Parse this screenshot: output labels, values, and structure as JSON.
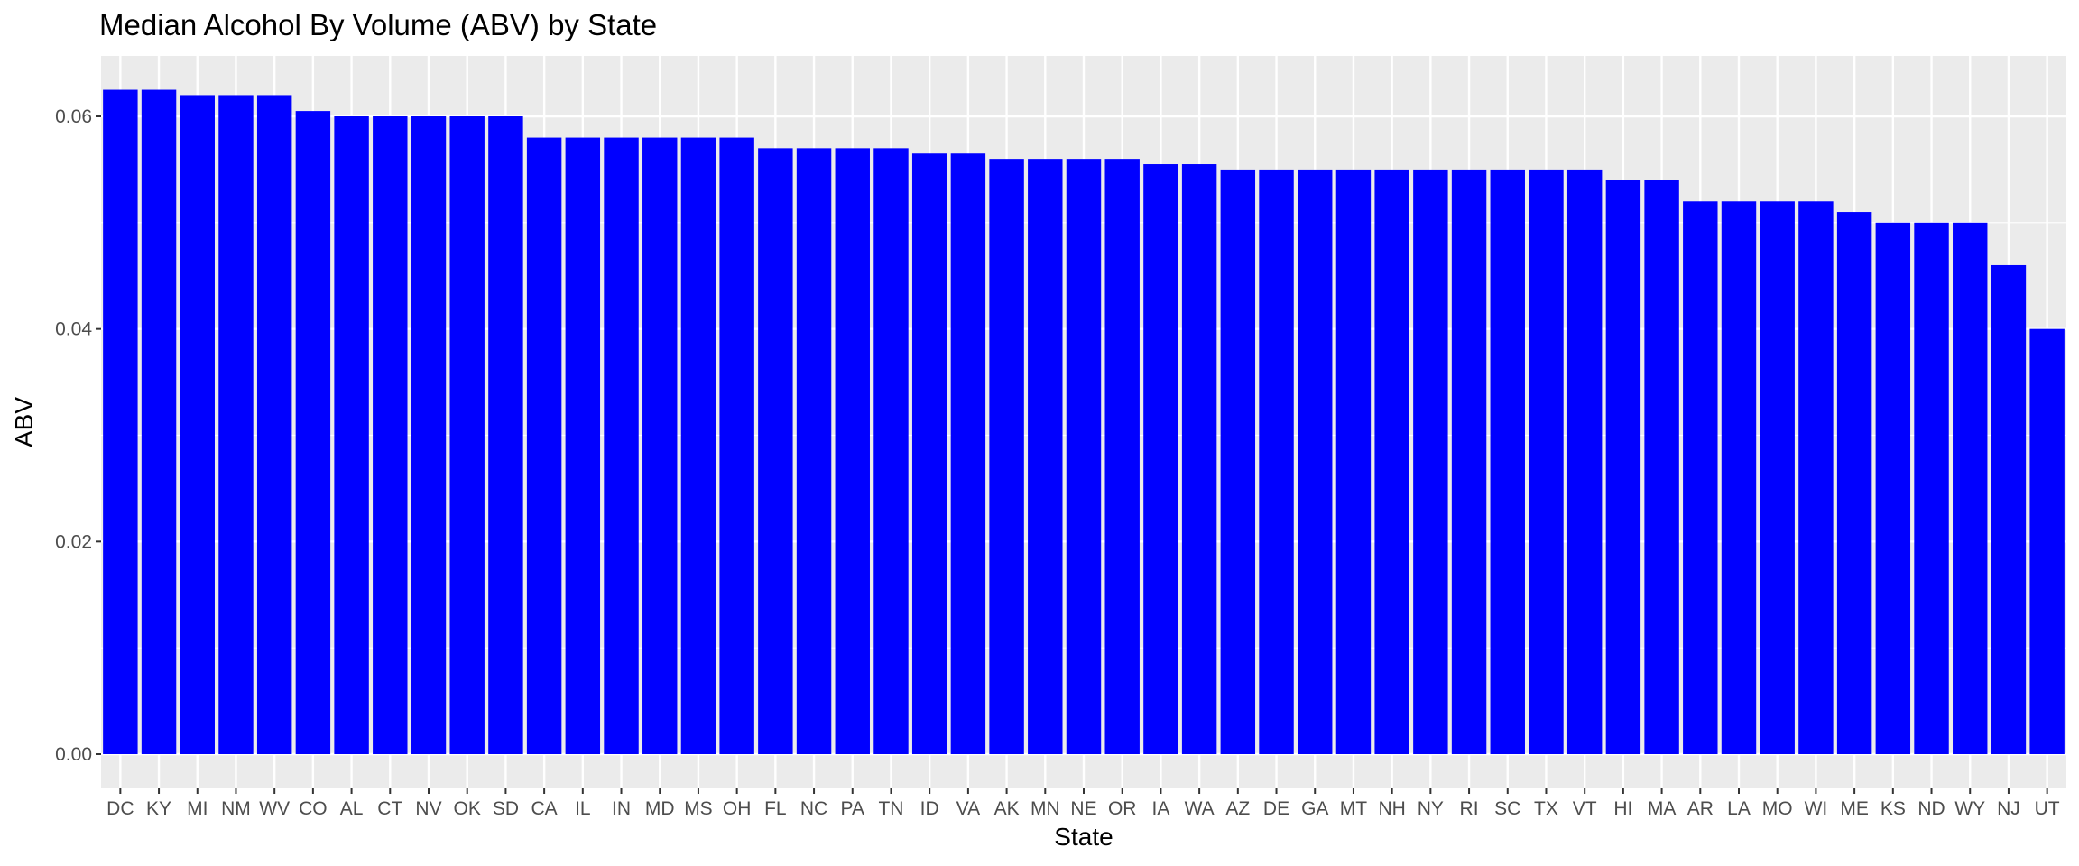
{
  "chart_data": {
    "type": "bar",
    "title": "Median Alcohol By Volume (ABV) by State",
    "xlabel": "State",
    "ylabel": "ABV",
    "ylim": [
      0,
      0.065
    ],
    "yticks": [
      0.0,
      0.02,
      0.04,
      0.06
    ],
    "ytick_labels": [
      "0.00",
      "0.02",
      "0.04",
      "0.06"
    ],
    "grid": true,
    "legend": "none",
    "bar_color": "#0000ff",
    "panel_background": "#ebebeb",
    "grid_color": "#ffffff",
    "categories": [
      "DC",
      "KY",
      "MI",
      "NM",
      "WV",
      "CO",
      "AL",
      "CT",
      "NV",
      "OK",
      "SD",
      "CA",
      "IL",
      "IN",
      "MD",
      "MS",
      "OH",
      "FL",
      "NC",
      "PA",
      "TN",
      "ID",
      "VA",
      "AK",
      "MN",
      "NE",
      "OR",
      "IA",
      "WA",
      "AZ",
      "DE",
      "GA",
      "MT",
      "NH",
      "NY",
      "RI",
      "SC",
      "TX",
      "VT",
      "HI",
      "MA",
      "AR",
      "LA",
      "MO",
      "WI",
      "ME",
      "KS",
      "ND",
      "WY",
      "NJ",
      "UT"
    ],
    "values": [
      0.0625,
      0.0625,
      0.062,
      0.062,
      0.062,
      0.0605,
      0.06,
      0.06,
      0.06,
      0.06,
      0.06,
      0.058,
      0.058,
      0.058,
      0.058,
      0.058,
      0.058,
      0.057,
      0.057,
      0.057,
      0.057,
      0.0565,
      0.0565,
      0.056,
      0.056,
      0.056,
      0.056,
      0.0555,
      0.0555,
      0.055,
      0.055,
      0.055,
      0.055,
      0.055,
      0.055,
      0.055,
      0.055,
      0.055,
      0.055,
      0.054,
      0.054,
      0.052,
      0.052,
      0.052,
      0.052,
      0.051,
      0.05,
      0.05,
      0.05,
      0.046,
      0.04
    ]
  }
}
